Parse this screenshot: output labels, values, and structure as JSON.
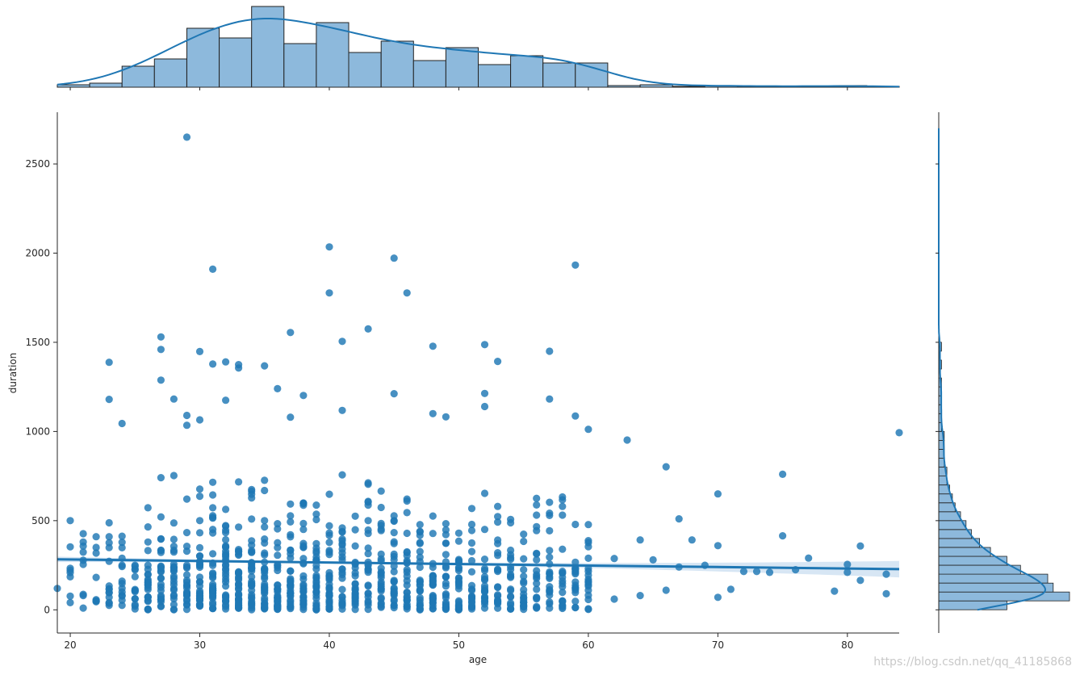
{
  "chart_data": {
    "type": "scatter",
    "subtype": "jointplot-regression",
    "xlabel": "age",
    "ylabel": "duration",
    "xlim": [
      19,
      84
    ],
    "ylim": [
      -130,
      2790
    ],
    "x_ticks": [
      20,
      30,
      40,
      50,
      60,
      70,
      80
    ],
    "y_ticks": [
      0,
      500,
      1000,
      1500,
      2000,
      2500
    ],
    "grid": false,
    "colors": {
      "points": "#1f77b4",
      "hist_fill": "#8db9dc",
      "hist_edge": "#222222",
      "band": "#c6dbef"
    },
    "regression": {
      "x": [
        19,
        84
      ],
      "y": [
        283,
        228
      ]
    },
    "outliers": [
      [
        29,
        2650
      ],
      [
        31,
        1910
      ],
      [
        40,
        2035
      ],
      [
        40,
        1777
      ],
      [
        45,
        1972
      ],
      [
        46,
        1777
      ],
      [
        59,
        1933
      ],
      [
        27,
        1530
      ],
      [
        27,
        1460
      ],
      [
        37,
        1555
      ],
      [
        43,
        1575
      ],
      [
        41,
        1505
      ],
      [
        48,
        1478
      ],
      [
        52,
        1487
      ],
      [
        53,
        1393
      ],
      [
        57,
        1450
      ],
      [
        23,
        1388
      ],
      [
        30,
        1448
      ],
      [
        31,
        1378
      ],
      [
        32,
        1390
      ],
      [
        33,
        1375
      ],
      [
        33,
        1356
      ],
      [
        35,
        1368
      ],
      [
        27,
        1288
      ],
      [
        36,
        1240
      ],
      [
        23,
        1180
      ],
      [
        28,
        1182
      ],
      [
        32,
        1175
      ],
      [
        38,
        1202
      ],
      [
        45,
        1212
      ],
      [
        52,
        1213
      ],
      [
        57,
        1182
      ],
      [
        41,
        1118
      ],
      [
        29,
        1090
      ],
      [
        30,
        1065
      ],
      [
        24,
        1045
      ],
      [
        29,
        1035
      ],
      [
        37,
        1080
      ],
      [
        48,
        1100
      ],
      [
        49,
        1082
      ],
      [
        52,
        1140
      ],
      [
        59,
        1087
      ],
      [
        60,
        1012
      ],
      [
        63,
        952
      ],
      [
        84,
        993
      ],
      [
        66,
        802
      ],
      [
        75,
        760
      ],
      [
        70,
        650
      ],
      [
        67,
        510
      ],
      [
        75,
        415
      ],
      [
        64,
        392
      ],
      [
        68,
        392
      ],
      [
        70,
        360
      ],
      [
        81,
        358
      ],
      [
        77,
        290
      ],
      [
        62,
        288
      ],
      [
        20,
        500
      ],
      [
        21,
        380
      ],
      [
        22,
        350
      ],
      [
        69,
        250
      ],
      [
        72,
        215
      ],
      [
        74,
        210
      ],
      [
        80,
        255
      ],
      [
        80,
        210
      ],
      [
        81,
        165
      ],
      [
        83,
        200
      ],
      [
        83,
        90
      ],
      [
        79,
        105
      ],
      [
        71,
        115
      ],
      [
        70,
        70
      ],
      [
        66,
        110
      ],
      [
        64,
        80
      ],
      [
        62,
        60
      ],
      [
        19,
        120
      ],
      [
        20,
        185
      ],
      [
        21,
        80
      ],
      [
        21,
        10
      ],
      [
        22,
        50
      ],
      [
        65,
        280
      ],
      [
        67,
        240
      ],
      [
        73,
        215
      ],
      [
        76,
        225
      ]
    ],
    "hist_x": {
      "bin_edges": [
        19,
        21.5,
        24,
        26.5,
        29,
        31.5,
        34,
        36.5,
        39,
        41.5,
        44,
        46.5,
        49,
        51.5,
        54,
        56.5,
        59,
        61.5,
        64,
        66.5,
        69,
        71.5,
        74,
        76.5,
        79,
        81.5,
        84
      ],
      "counts": [
        3,
        5,
        26,
        35,
        73,
        61,
        100,
        54,
        80,
        43,
        57,
        33,
        49,
        28,
        39,
        30,
        30,
        2,
        3,
        1,
        2,
        1,
        1,
        1,
        2,
        1
      ]
    },
    "hist_y": {
      "bin_edges": [
        0,
        50,
        100,
        150,
        200,
        250,
        300,
        350,
        400,
        450,
        500,
        550,
        600,
        650,
        700,
        750,
        800,
        850,
        900,
        950,
        1000,
        1050,
        1100,
        1150,
        1200,
        1250,
        1300,
        1350,
        1400,
        1450,
        1500
      ],
      "counts": [
        25,
        48,
        42,
        40,
        30,
        25,
        19,
        15,
        12,
        10,
        8,
        6,
        5,
        4,
        3,
        3,
        2,
        2,
        2,
        2,
        1,
        1,
        1,
        1,
        1,
        1,
        0,
        1,
        0,
        1
      ]
    }
  }
}
